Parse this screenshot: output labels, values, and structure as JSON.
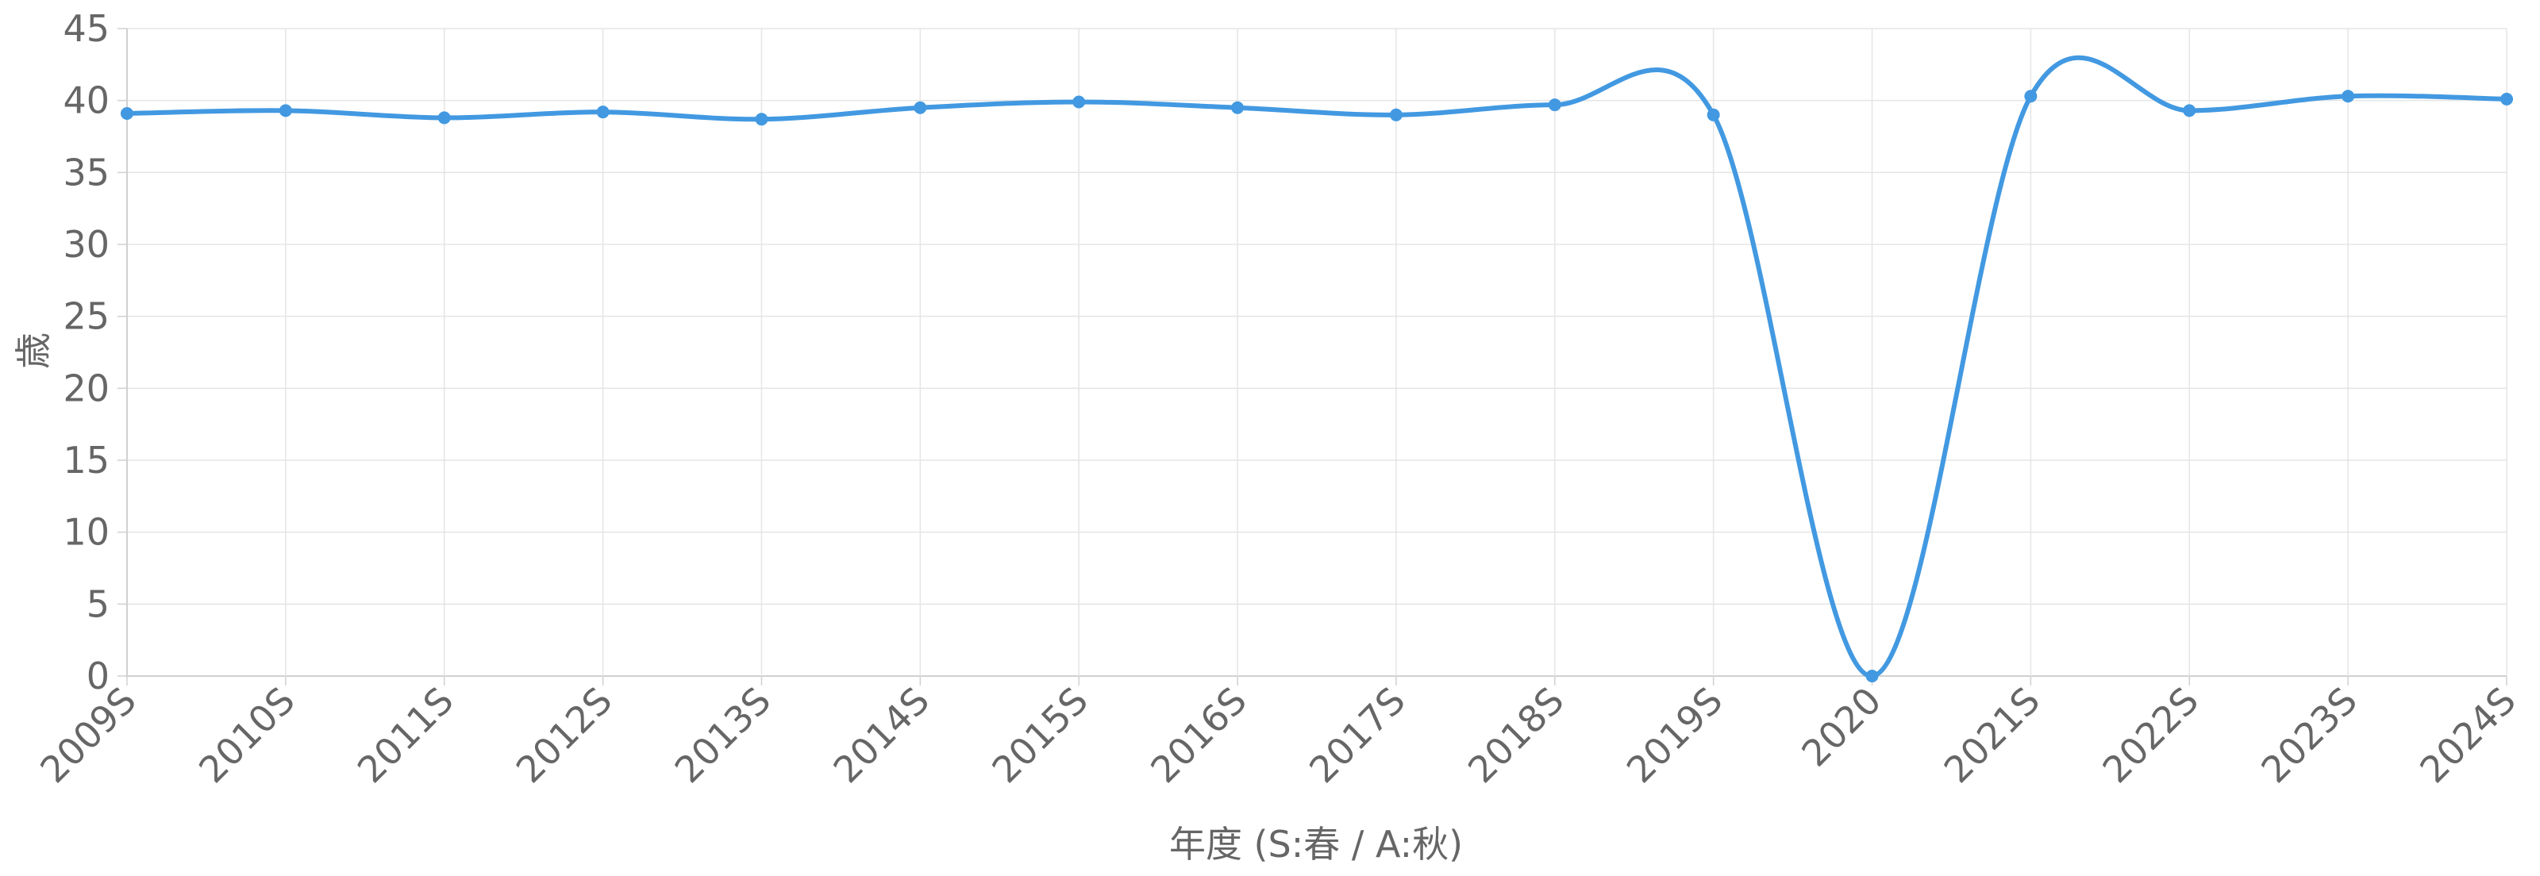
{
  "chart_data": {
    "type": "line",
    "title": "",
    "xlabel": "年度 (S:春 / A:秋)",
    "ylabel": "歳",
    "categories": [
      "2009S",
      "2010S",
      "2011S",
      "2012S",
      "2013S",
      "2014S",
      "2015S",
      "2016S",
      "2017S",
      "2018S",
      "2019S",
      "2020",
      "2021S",
      "2022S",
      "2023S",
      "2024S"
    ],
    "series": [
      {
        "values": [
          39.1,
          39.3,
          38.8,
          39.2,
          38.7,
          39.5,
          39.9,
          39.5,
          39.0,
          39.7,
          39.0,
          0,
          40.3,
          39.3,
          40.3,
          40.1
        ]
      }
    ],
    "ylim": [
      0,
      45
    ],
    "yticks": [
      "0",
      "5",
      "10",
      "15",
      "20",
      "25",
      "30",
      "35",
      "40",
      "45"
    ],
    "grid": true,
    "legend": "none",
    "colors": {
      "line": "#4299e1",
      "grid": "#e5e5e5",
      "axis": "#d0d0d0",
      "text": "#666666"
    }
  }
}
